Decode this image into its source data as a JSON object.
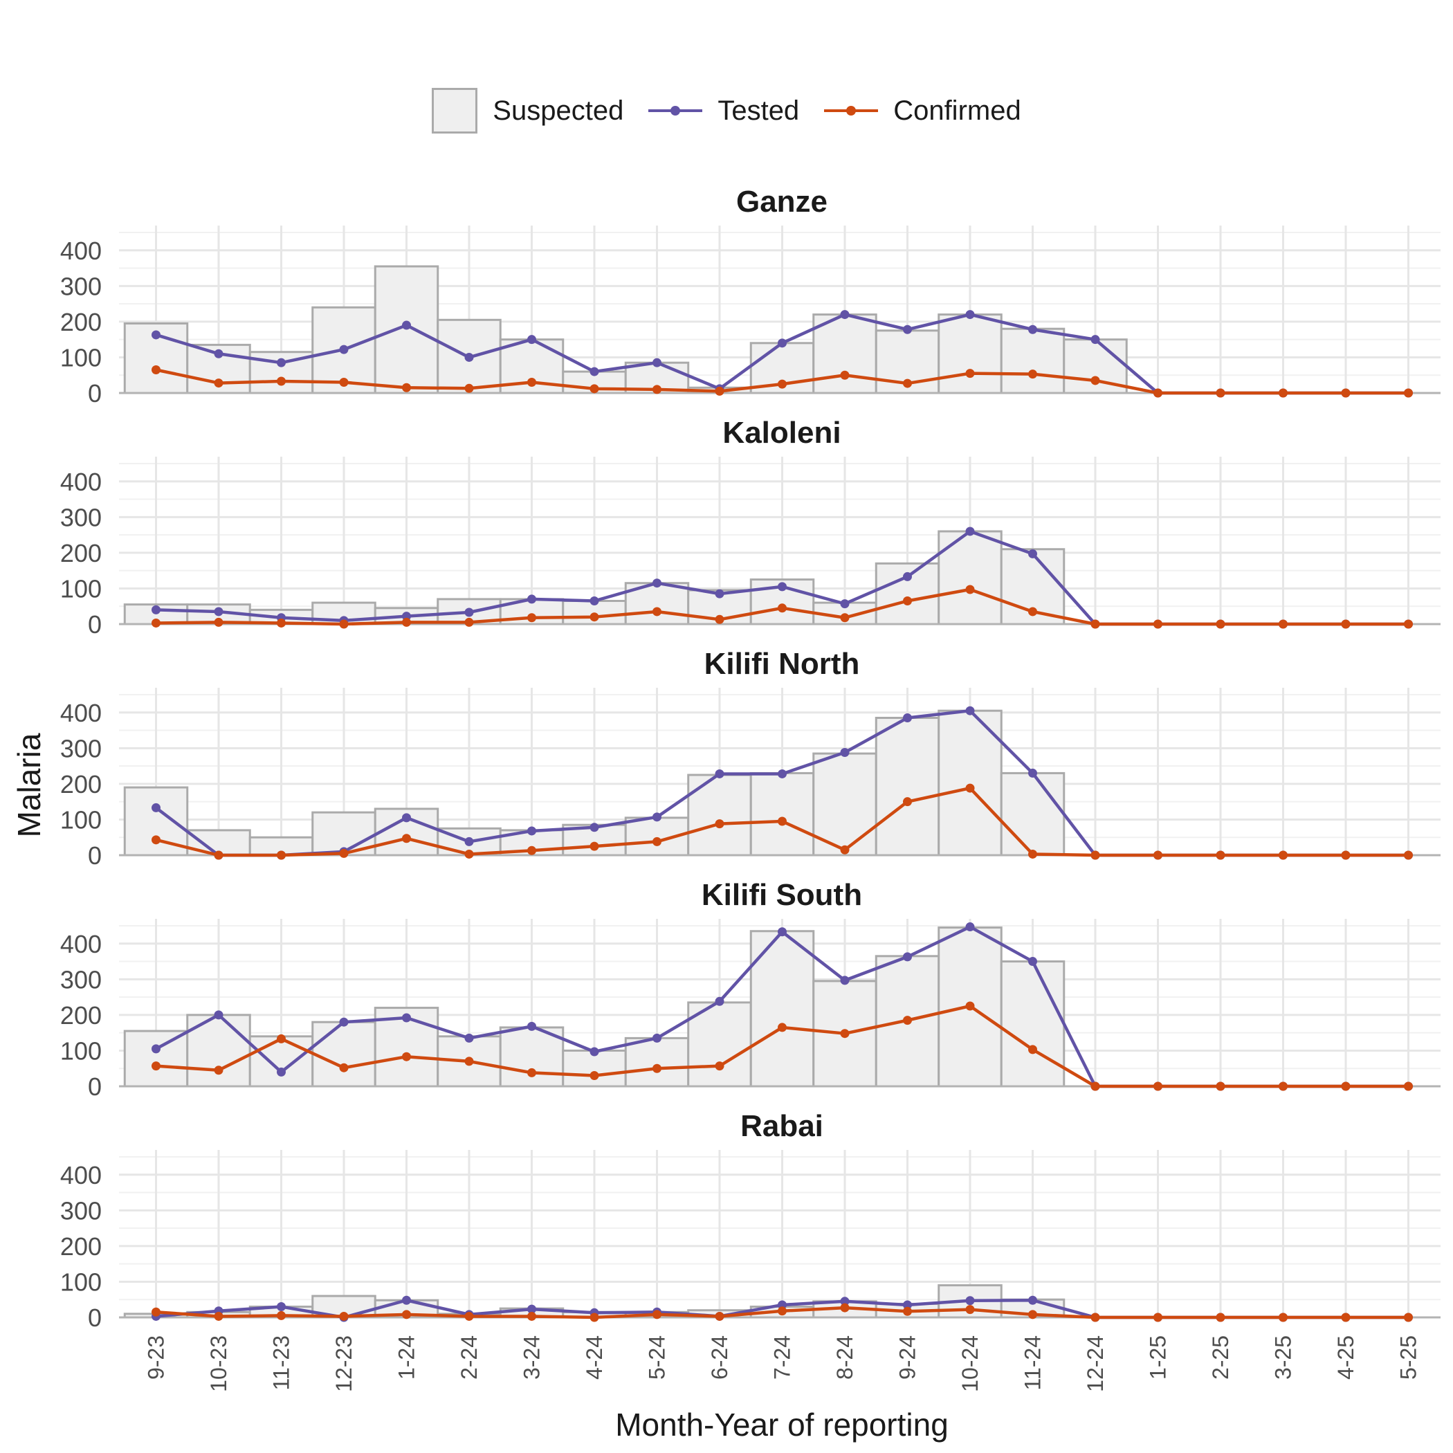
{
  "chart_data": {
    "type": "bar",
    "ylabel": "Malaria",
    "xlabel": "Month-Year of reporting",
    "categories": [
      "9-23",
      "10-23",
      "11-23",
      "12-23",
      "1-24",
      "2-24",
      "3-24",
      "4-24",
      "5-24",
      "6-24",
      "7-24",
      "8-24",
      "9-24",
      "10-24",
      "11-24",
      "12-24",
      "1-25",
      "2-25",
      "3-25",
      "4-25",
      "5-25"
    ],
    "ylim": [
      0,
      450
    ],
    "yticks": [
      0,
      100,
      200,
      300,
      400
    ],
    "grid": true,
    "legend": {
      "position": "top",
      "entries": [
        {
          "name": "Suspected",
          "kind": "bar",
          "fill": "#efefef",
          "stroke": "#aaaaaa"
        },
        {
          "name": "Tested",
          "kind": "line",
          "color": "#6153a6"
        },
        {
          "name": "Confirmed",
          "kind": "line",
          "color": "#cf4a10"
        }
      ]
    },
    "panels": [
      {
        "title": "Ganze",
        "series": [
          {
            "name": "Suspected",
            "values": [
              195,
              135,
              115,
              240,
              355,
              205,
              150,
              60,
              85,
              15,
              140,
              220,
              175,
              220,
              180,
              150,
              0,
              0,
              0,
              0,
              0
            ]
          },
          {
            "name": "Tested",
            "values": [
              163,
              110,
              85,
              122,
              190,
              100,
              150,
              60,
              85,
              12,
              140,
              220,
              178,
              220,
              178,
              150,
              0,
              0,
              0,
              0,
              0
            ]
          },
          {
            "name": "Confirmed",
            "values": [
              65,
              28,
              33,
              30,
              15,
              13,
              30,
              12,
              10,
              5,
              25,
              50,
              27,
              55,
              53,
              35,
              0,
              0,
              0,
              0,
              0
            ]
          }
        ]
      },
      {
        "title": "Kaloleni",
        "series": [
          {
            "name": "Suspected",
            "values": [
              55,
              55,
              40,
              60,
              45,
              70,
              70,
              65,
              115,
              95,
              125,
              60,
              170,
              260,
              210,
              0,
              0,
              0,
              0,
              0,
              0
            ]
          },
          {
            "name": "Tested",
            "values": [
              40,
              35,
              18,
              10,
              22,
              33,
              70,
              65,
              115,
              85,
              105,
              57,
              133,
              260,
              197,
              0,
              0,
              0,
              0,
              0,
              0
            ]
          },
          {
            "name": "Confirmed",
            "values": [
              3,
              5,
              3,
              0,
              5,
              5,
              18,
              20,
              35,
              13,
              45,
              18,
              65,
              97,
              35,
              0,
              0,
              0,
              0,
              0,
              0
            ]
          }
        ]
      },
      {
        "title": "Kilifi North",
        "series": [
          {
            "name": "Suspected",
            "values": [
              190,
              70,
              50,
              120,
              130,
              75,
              70,
              85,
              105,
              225,
              230,
              285,
              385,
              405,
              230,
              0,
              0,
              0,
              0,
              0,
              0
            ]
          },
          {
            "name": "Tested",
            "values": [
              133,
              0,
              0,
              10,
              105,
              38,
              68,
              78,
              107,
              228,
              228,
              288,
              385,
              405,
              230,
              0,
              0,
              0,
              0,
              0,
              0
            ]
          },
          {
            "name": "Confirmed",
            "values": [
              43,
              0,
              0,
              5,
              47,
              3,
              13,
              25,
              38,
              88,
              95,
              15,
              150,
              188,
              3,
              0,
              0,
              0,
              0,
              0,
              0
            ]
          }
        ]
      },
      {
        "title": "Kilifi South",
        "series": [
          {
            "name": "Suspected",
            "values": [
              155,
              200,
              140,
              180,
              220,
              140,
              165,
              100,
              135,
              235,
              435,
              295,
              365,
              445,
              350,
              0,
              0,
              0,
              0,
              0,
              0
            ]
          },
          {
            "name": "Tested",
            "values": [
              105,
              200,
              40,
              180,
              192,
              135,
              168,
              97,
              135,
              238,
              433,
              297,
              363,
              447,
              350,
              0,
              0,
              0,
              0,
              0,
              0
            ]
          },
          {
            "name": "Confirmed",
            "values": [
              57,
              45,
              133,
              52,
              83,
              70,
              38,
              30,
              50,
              57,
              165,
              148,
              185,
              225,
              103,
              0,
              0,
              0,
              0,
              0,
              0
            ]
          }
        ]
      },
      {
        "title": "Rabai",
        "series": [
          {
            "name": "Suspected",
            "values": [
              10,
              15,
              30,
              60,
              48,
              10,
              25,
              15,
              15,
              20,
              30,
              45,
              38,
              90,
              50,
              0,
              0,
              0,
              0,
              0,
              0
            ]
          },
          {
            "name": "Tested",
            "values": [
              3,
              18,
              30,
              0,
              48,
              8,
              23,
              13,
              15,
              3,
              35,
              45,
              35,
              47,
              48,
              0,
              0,
              0,
              0,
              0,
              0
            ]
          },
          {
            "name": "Confirmed",
            "values": [
              15,
              3,
              5,
              3,
              8,
              3,
              3,
              0,
              8,
              3,
              18,
              27,
              17,
              22,
              8,
              0,
              0,
              0,
              0,
              0,
              0
            ]
          }
        ]
      }
    ]
  }
}
